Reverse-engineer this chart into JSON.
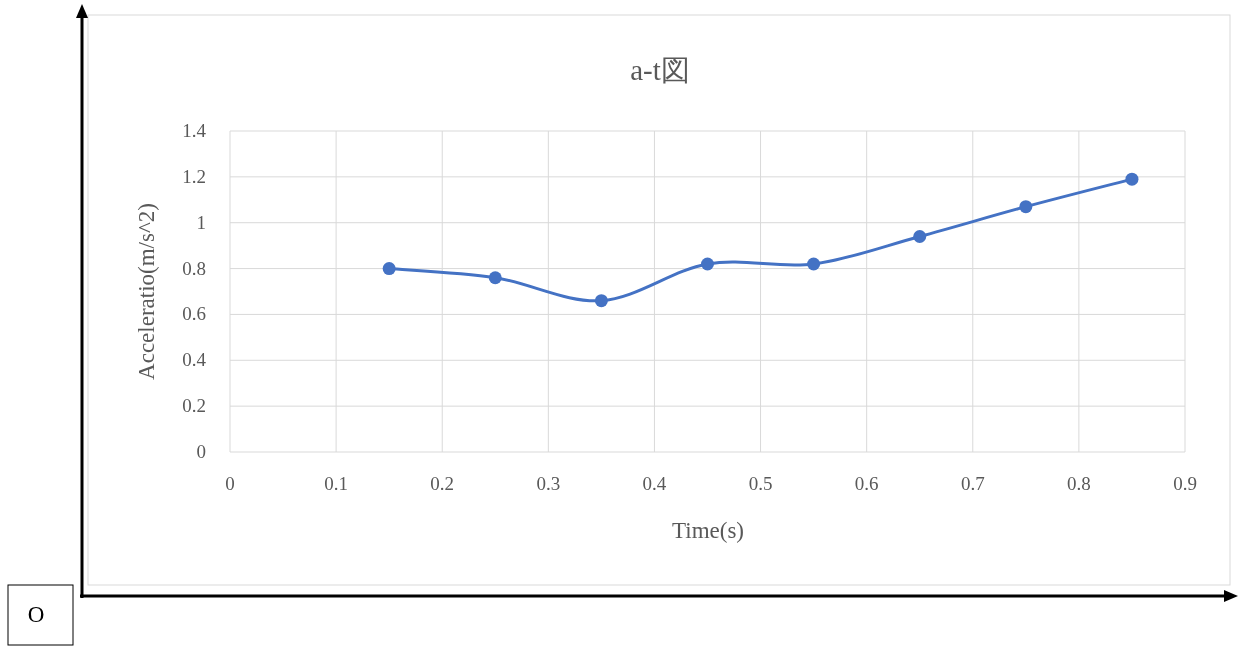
{
  "chart_data": {
    "type": "line",
    "title": "a-t図",
    "xlabel": "Time(s)",
    "ylabel": "Acceleratio(m/s^2)",
    "x": [
      0.15,
      0.25,
      0.35,
      0.45,
      0.55,
      0.65,
      0.75,
      0.85
    ],
    "series": [
      {
        "color": "#4472c4",
        "values": [
          0.8,
          0.76,
          0.66,
          0.82,
          0.82,
          0.94,
          1.07,
          1.19
        ]
      }
    ],
    "xlim": [
      0,
      0.9
    ],
    "ylim": [
      0,
      1.4
    ],
    "xticks": [
      0,
      0.1,
      0.2,
      0.3,
      0.4,
      0.5,
      0.6,
      0.7,
      0.8,
      0.9
    ],
    "yticks": [
      0,
      0.2,
      0.4,
      0.6,
      0.8,
      1,
      1.2,
      1.4
    ],
    "grid": true,
    "marker": "circle",
    "line_style": "solid",
    "annotations": [
      "O"
    ]
  }
}
